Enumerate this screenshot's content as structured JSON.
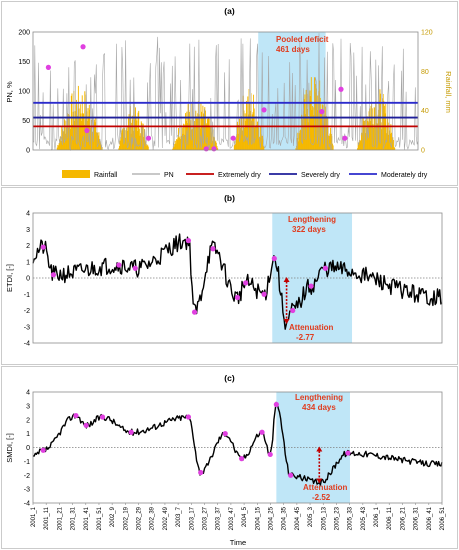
{
  "chart_data": [
    {
      "panel_label": "(a)",
      "type": "line",
      "ylabel_left": "PN, %",
      "ylabel_right": "Rainfall, mm",
      "ylim_left": [
        0,
        200
      ],
      "yticks_left": [
        0,
        50,
        100,
        150,
        200
      ],
      "ylim_right": [
        0,
        120
      ],
      "yticks_right": [
        0,
        40,
        80,
        120
      ],
      "legend": [
        "Rainfall",
        "PN",
        "Extremely dry",
        "Severely dry",
        "Moderately dry"
      ],
      "thresholds": [
        {
          "name": "Extremely dry",
          "value": 40,
          "color": "#c00000"
        },
        {
          "name": "Severely dry",
          "value": 55,
          "color": "#1f1f9a"
        },
        {
          "name": "Moderately dry",
          "value": 80,
          "color": "#2b2bcc"
        }
      ],
      "highlight": {
        "start": 0.585,
        "end": 0.76
      },
      "annotation": [
        "Pooled deficit",
        "461 days"
      ],
      "colors": {
        "rainfall": "#f5b800",
        "pn": "#a6a6a6",
        "marker": "#e040e0",
        "highlight": "#bfe6f7"
      },
      "markers": [
        [
          0.04,
          140
        ],
        [
          0.13,
          175
        ],
        [
          0.14,
          33
        ],
        [
          0.3,
          20
        ],
        [
          0.45,
          2
        ],
        [
          0.47,
          2
        ],
        [
          0.52,
          20
        ],
        [
          0.6,
          68
        ],
        [
          0.75,
          65
        ],
        [
          0.8,
          103
        ],
        [
          0.81,
          20
        ]
      ]
    },
    {
      "panel_label": "(b)",
      "type": "line",
      "ylabel": "ETDI, [-]",
      "ylim": [
        -4,
        4
      ],
      "yticks": [
        -4,
        -3,
        -2,
        -1,
        0,
        1,
        2,
        3,
        4
      ],
      "highlight": {
        "start": 0.585,
        "end": 0.78
      },
      "annotation_top": [
        "Lengthening",
        "322 days"
      ],
      "annotation_bottom": [
        "Attenuation",
        "-2.77"
      ],
      "markers": [
        [
          0.025,
          1.9
        ],
        [
          0.05,
          0.2
        ],
        [
          0.21,
          0.8
        ],
        [
          0.25,
          0.6
        ],
        [
          0.38,
          2.3
        ],
        [
          0.395,
          -2.1
        ],
        [
          0.44,
          1.8
        ],
        [
          0.5,
          -1.2
        ],
        [
          0.52,
          -0.3
        ],
        [
          0.565,
          -1.0
        ],
        [
          0.59,
          1.2
        ],
        [
          0.635,
          -2.0
        ],
        [
          0.68,
          -0.5
        ],
        [
          0.715,
          0.6
        ]
      ],
      "trough": {
        "x": 0.62,
        "value": -2.77
      }
    },
    {
      "panel_label": "(c)",
      "type": "line",
      "ylabel": "SMDI, [-]",
      "xlabel": "Time",
      "ylim": [
        -4,
        4
      ],
      "yticks": [
        -4,
        -3,
        -2,
        -1,
        0,
        1,
        2,
        3,
        4
      ],
      "x_tick_labels": [
        "2001_1",
        "2001_11",
        "2001_21",
        "2001_31",
        "2001_41",
        "2001_51",
        "2002_9",
        "2002_19",
        "2002_29",
        "2002_39",
        "2002_49",
        "2003_7",
        "2003_17",
        "2003_27",
        "2003_37",
        "2003_47",
        "2004_5",
        "2004_15",
        "2004_25",
        "2004_35",
        "2004_45",
        "2005_3",
        "2005_13",
        "2005_23",
        "2005_33",
        "2005_43",
        "2006_1",
        "2006_11",
        "2006_21",
        "2006_31",
        "2006_41",
        "2006_51"
      ],
      "highlight": {
        "start": 0.595,
        "end": 0.775
      },
      "annotation_top": [
        "Lengthening",
        "434 days"
      ],
      "annotation_bottom": [
        "Attenuation",
        "-2.52"
      ],
      "markers": [
        [
          0.025,
          -0.2
        ],
        [
          0.105,
          2.3
        ],
        [
          0.13,
          1.6
        ],
        [
          0.17,
          2.2
        ],
        [
          0.24,
          1.1
        ],
        [
          0.38,
          2.2
        ],
        [
          0.41,
          -1.8
        ],
        [
          0.47,
          1.0
        ],
        [
          0.51,
          -0.8
        ],
        [
          0.56,
          1.1
        ],
        [
          0.58,
          -0.5
        ],
        [
          0.595,
          3.1
        ],
        [
          0.63,
          -2.0
        ],
        [
          0.77,
          -0.4
        ]
      ],
      "trough": {
        "x": 0.7,
        "value": -2.52
      }
    }
  ]
}
